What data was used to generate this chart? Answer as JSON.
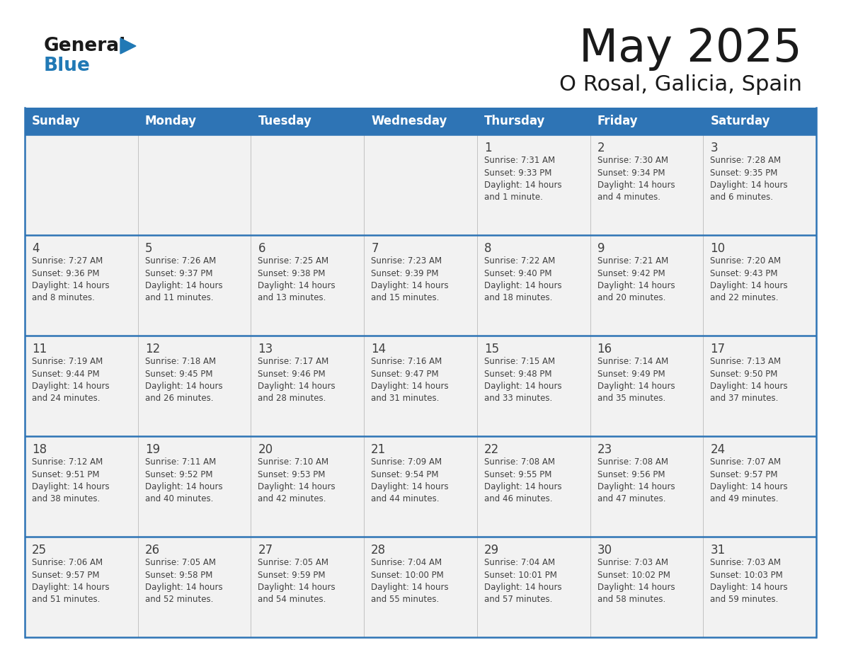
{
  "title": "May 2025",
  "subtitle": "O Rosal, Galicia, Spain",
  "days_of_week": [
    "Sunday",
    "Monday",
    "Tuesday",
    "Wednesday",
    "Thursday",
    "Friday",
    "Saturday"
  ],
  "header_bg": "#2E74B5",
  "header_text": "#FFFFFF",
  "row_bg": "#F2F2F2",
  "line_color": "#2E74B5",
  "cell_text_color": "#404040",
  "logo_blue": "#2179B5",
  "logo_dark": "#1A1A1A",
  "fig_width": 11.88,
  "fig_height": 9.18,
  "calendar_data": [
    [
      {
        "day": "",
        "info": ""
      },
      {
        "day": "",
        "info": ""
      },
      {
        "day": "",
        "info": ""
      },
      {
        "day": "",
        "info": ""
      },
      {
        "day": "1",
        "info": "Sunrise: 7:31 AM\nSunset: 9:33 PM\nDaylight: 14 hours\nand 1 minute."
      },
      {
        "day": "2",
        "info": "Sunrise: 7:30 AM\nSunset: 9:34 PM\nDaylight: 14 hours\nand 4 minutes."
      },
      {
        "day": "3",
        "info": "Sunrise: 7:28 AM\nSunset: 9:35 PM\nDaylight: 14 hours\nand 6 minutes."
      }
    ],
    [
      {
        "day": "4",
        "info": "Sunrise: 7:27 AM\nSunset: 9:36 PM\nDaylight: 14 hours\nand 8 minutes."
      },
      {
        "day": "5",
        "info": "Sunrise: 7:26 AM\nSunset: 9:37 PM\nDaylight: 14 hours\nand 11 minutes."
      },
      {
        "day": "6",
        "info": "Sunrise: 7:25 AM\nSunset: 9:38 PM\nDaylight: 14 hours\nand 13 minutes."
      },
      {
        "day": "7",
        "info": "Sunrise: 7:23 AM\nSunset: 9:39 PM\nDaylight: 14 hours\nand 15 minutes."
      },
      {
        "day": "8",
        "info": "Sunrise: 7:22 AM\nSunset: 9:40 PM\nDaylight: 14 hours\nand 18 minutes."
      },
      {
        "day": "9",
        "info": "Sunrise: 7:21 AM\nSunset: 9:42 PM\nDaylight: 14 hours\nand 20 minutes."
      },
      {
        "day": "10",
        "info": "Sunrise: 7:20 AM\nSunset: 9:43 PM\nDaylight: 14 hours\nand 22 minutes."
      }
    ],
    [
      {
        "day": "11",
        "info": "Sunrise: 7:19 AM\nSunset: 9:44 PM\nDaylight: 14 hours\nand 24 minutes."
      },
      {
        "day": "12",
        "info": "Sunrise: 7:18 AM\nSunset: 9:45 PM\nDaylight: 14 hours\nand 26 minutes."
      },
      {
        "day": "13",
        "info": "Sunrise: 7:17 AM\nSunset: 9:46 PM\nDaylight: 14 hours\nand 28 minutes."
      },
      {
        "day": "14",
        "info": "Sunrise: 7:16 AM\nSunset: 9:47 PM\nDaylight: 14 hours\nand 31 minutes."
      },
      {
        "day": "15",
        "info": "Sunrise: 7:15 AM\nSunset: 9:48 PM\nDaylight: 14 hours\nand 33 minutes."
      },
      {
        "day": "16",
        "info": "Sunrise: 7:14 AM\nSunset: 9:49 PM\nDaylight: 14 hours\nand 35 minutes."
      },
      {
        "day": "17",
        "info": "Sunrise: 7:13 AM\nSunset: 9:50 PM\nDaylight: 14 hours\nand 37 minutes."
      }
    ],
    [
      {
        "day": "18",
        "info": "Sunrise: 7:12 AM\nSunset: 9:51 PM\nDaylight: 14 hours\nand 38 minutes."
      },
      {
        "day": "19",
        "info": "Sunrise: 7:11 AM\nSunset: 9:52 PM\nDaylight: 14 hours\nand 40 minutes."
      },
      {
        "day": "20",
        "info": "Sunrise: 7:10 AM\nSunset: 9:53 PM\nDaylight: 14 hours\nand 42 minutes."
      },
      {
        "day": "21",
        "info": "Sunrise: 7:09 AM\nSunset: 9:54 PM\nDaylight: 14 hours\nand 44 minutes."
      },
      {
        "day": "22",
        "info": "Sunrise: 7:08 AM\nSunset: 9:55 PM\nDaylight: 14 hours\nand 46 minutes."
      },
      {
        "day": "23",
        "info": "Sunrise: 7:08 AM\nSunset: 9:56 PM\nDaylight: 14 hours\nand 47 minutes."
      },
      {
        "day": "24",
        "info": "Sunrise: 7:07 AM\nSunset: 9:57 PM\nDaylight: 14 hours\nand 49 minutes."
      }
    ],
    [
      {
        "day": "25",
        "info": "Sunrise: 7:06 AM\nSunset: 9:57 PM\nDaylight: 14 hours\nand 51 minutes."
      },
      {
        "day": "26",
        "info": "Sunrise: 7:05 AM\nSunset: 9:58 PM\nDaylight: 14 hours\nand 52 minutes."
      },
      {
        "day": "27",
        "info": "Sunrise: 7:05 AM\nSunset: 9:59 PM\nDaylight: 14 hours\nand 54 minutes."
      },
      {
        "day": "28",
        "info": "Sunrise: 7:04 AM\nSunset: 10:00 PM\nDaylight: 14 hours\nand 55 minutes."
      },
      {
        "day": "29",
        "info": "Sunrise: 7:04 AM\nSunset: 10:01 PM\nDaylight: 14 hours\nand 57 minutes."
      },
      {
        "day": "30",
        "info": "Sunrise: 7:03 AM\nSunset: 10:02 PM\nDaylight: 14 hours\nand 58 minutes."
      },
      {
        "day": "31",
        "info": "Sunrise: 7:03 AM\nSunset: 10:03 PM\nDaylight: 14 hours\nand 59 minutes."
      }
    ]
  ]
}
